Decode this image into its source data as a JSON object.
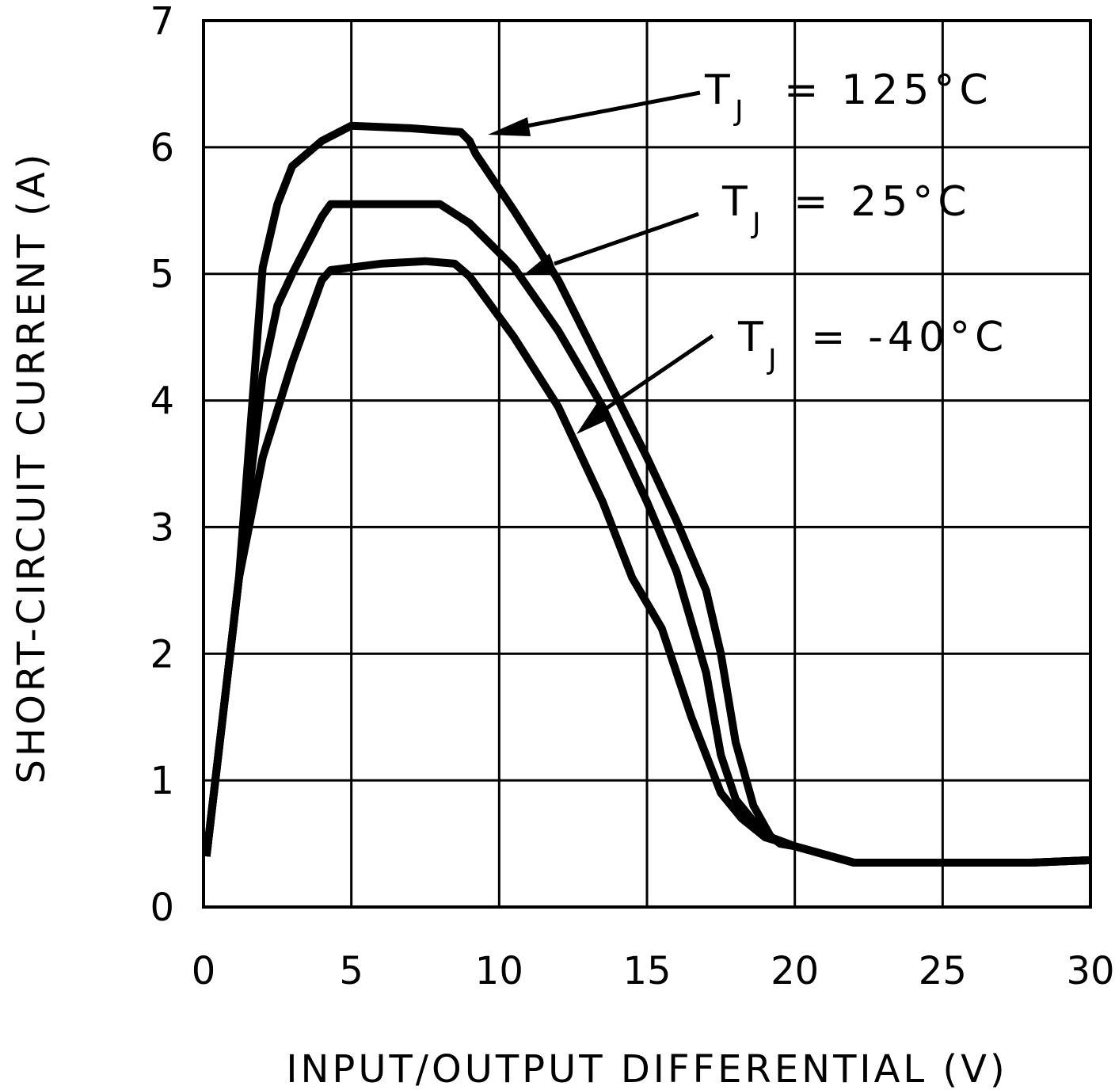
{
  "chart_data": {
    "type": "line",
    "title": "",
    "xlabel": "INPUT/OUTPUT DIFFERENTIAL (V)",
    "ylabel": "SHORT-CIRCUIT CURRENT (A)",
    "xlim": [
      0,
      30
    ],
    "ylim": [
      0,
      7
    ],
    "x_ticks": [
      0,
      5,
      10,
      15,
      20,
      25,
      30
    ],
    "y_ticks": [
      0,
      1,
      2,
      3,
      4,
      5,
      6,
      7
    ],
    "x_tick_labels": [
      "0",
      "5",
      "10",
      "15",
      "20",
      "25",
      "30"
    ],
    "y_tick_labels": [
      "0",
      "1",
      "2",
      "3",
      "4",
      "5",
      "6",
      "7"
    ],
    "grid": true,
    "series": [
      {
        "name": "TJ = 125°C",
        "points": [
          [
            0.1,
            0.4
          ],
          [
            0.6,
            1.4
          ],
          [
            1.2,
            2.6
          ],
          [
            2.0,
            5.05
          ],
          [
            2.5,
            5.55
          ],
          [
            3.0,
            5.85
          ],
          [
            4.0,
            6.05
          ],
          [
            5.0,
            6.17
          ],
          [
            7.0,
            6.15
          ],
          [
            8.7,
            6.12
          ],
          [
            9.0,
            6.05
          ],
          [
            9.2,
            5.95
          ],
          [
            10.5,
            5.5
          ],
          [
            12.0,
            4.95
          ],
          [
            13.5,
            4.25
          ],
          [
            15.0,
            3.55
          ],
          [
            16.0,
            3.05
          ],
          [
            17.0,
            2.5
          ],
          [
            17.5,
            2.0
          ],
          [
            18.0,
            1.3
          ],
          [
            18.6,
            0.8
          ],
          [
            19.2,
            0.55
          ],
          [
            20.0,
            0.48
          ],
          [
            22.0,
            0.35
          ],
          [
            25.0,
            0.35
          ],
          [
            28.0,
            0.35
          ],
          [
            30.0,
            0.37
          ]
        ]
      },
      {
        "name": "TJ = 25°C",
        "points": [
          [
            0.1,
            0.4
          ],
          [
            0.6,
            1.4
          ],
          [
            1.2,
            2.6
          ],
          [
            2.0,
            4.2
          ],
          [
            2.5,
            4.75
          ],
          [
            3.0,
            5.0
          ],
          [
            4.0,
            5.45
          ],
          [
            4.3,
            5.55
          ],
          [
            6.0,
            5.55
          ],
          [
            8.0,
            5.55
          ],
          [
            9.0,
            5.4
          ],
          [
            10.5,
            5.05
          ],
          [
            12.0,
            4.55
          ],
          [
            13.5,
            3.95
          ],
          [
            15.0,
            3.2
          ],
          [
            16.0,
            2.65
          ],
          [
            17.0,
            1.85
          ],
          [
            17.5,
            1.2
          ],
          [
            18.0,
            0.85
          ],
          [
            18.7,
            0.65
          ],
          [
            19.5,
            0.5
          ],
          [
            20.0,
            0.48
          ],
          [
            22.0,
            0.35
          ],
          [
            25.0,
            0.35
          ],
          [
            28.0,
            0.35
          ],
          [
            30.0,
            0.37
          ]
        ]
      },
      {
        "name": "TJ = -40°C",
        "points": [
          [
            0.1,
            0.4
          ],
          [
            0.6,
            1.4
          ],
          [
            1.2,
            2.6
          ],
          [
            2.0,
            3.55
          ],
          [
            3.0,
            4.3
          ],
          [
            4.0,
            4.95
          ],
          [
            4.3,
            5.03
          ],
          [
            6.0,
            5.08
          ],
          [
            7.5,
            5.1
          ],
          [
            8.5,
            5.08
          ],
          [
            9.0,
            4.98
          ],
          [
            10.5,
            4.5
          ],
          [
            12.0,
            3.95
          ],
          [
            13.5,
            3.2
          ],
          [
            14.5,
            2.6
          ],
          [
            15.5,
            2.2
          ],
          [
            16.5,
            1.5
          ],
          [
            17.5,
            0.9
          ],
          [
            18.2,
            0.7
          ],
          [
            19.0,
            0.55
          ],
          [
            20.0,
            0.48
          ],
          [
            22.0,
            0.35
          ],
          [
            25.0,
            0.35
          ],
          [
            28.0,
            0.35
          ],
          [
            30.0,
            0.37
          ]
        ]
      }
    ],
    "annotations": [
      {
        "label": "T",
        "subscript": "J",
        "equation": "= 125°C",
        "series": "TJ = 125°C"
      },
      {
        "label": "T",
        "subscript": "J",
        "equation": "= 25°C",
        "series": "TJ = 25°C"
      },
      {
        "label": "T",
        "subscript": "J",
        "equation": "= -40°C",
        "series": "TJ = -40°C"
      }
    ]
  }
}
